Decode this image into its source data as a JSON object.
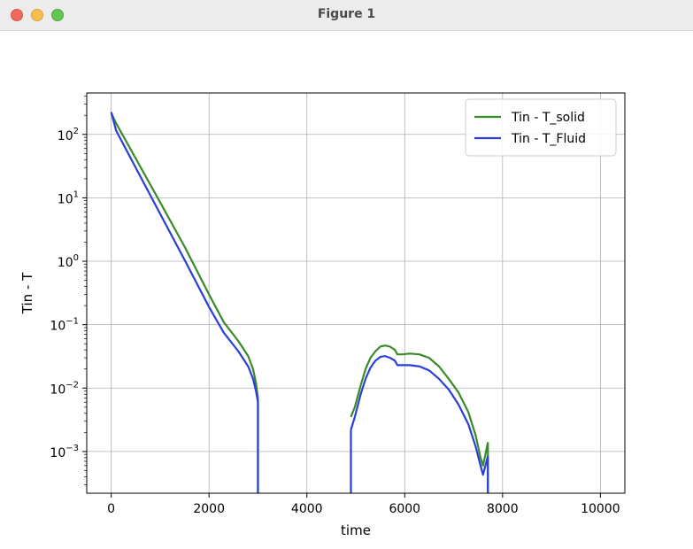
{
  "window": {
    "title": "Figure 1"
  },
  "chart_data": {
    "type": "line",
    "title": "",
    "xlabel": "time",
    "ylabel": "Tin - T",
    "yscale": "log",
    "xlim": [
      -500,
      10500
    ],
    "ylim": [
      0.00022,
      450
    ],
    "xticks": [
      {
        "value": 0,
        "label": "0"
      },
      {
        "value": 2000,
        "label": "2000"
      },
      {
        "value": 4000,
        "label": "4000"
      },
      {
        "value": 6000,
        "label": "6000"
      },
      {
        "value": 8000,
        "label": "8000"
      },
      {
        "value": 10000,
        "label": "10000"
      }
    ],
    "yticks": [
      {
        "value": 100,
        "base": "10",
        "exp": "2"
      },
      {
        "value": 10,
        "base": "10",
        "exp": "1"
      },
      {
        "value": 1,
        "base": "10",
        "exp": "0"
      },
      {
        "value": 0.1,
        "base": "10",
        "exp": "−1"
      },
      {
        "value": 0.01,
        "base": "10",
        "exp": "−2"
      },
      {
        "value": 0.001,
        "base": "10",
        "exp": "−3"
      }
    ],
    "grid": true,
    "legend_position": "top-right",
    "series": [
      {
        "name": "Tin - T_solid",
        "color": "#3a8a2a",
        "segments": [
          [
            [
              0,
              220
            ],
            [
              100,
              150
            ],
            [
              500,
              42
            ],
            [
              1000,
              8.5
            ],
            [
              1500,
              1.7
            ],
            [
              2000,
              0.3
            ],
            [
              2300,
              0.11
            ],
            [
              2600,
              0.055
            ],
            [
              2800,
              0.032
            ],
            [
              2900,
              0.02
            ],
            [
              2960,
              0.012
            ],
            [
              3000,
              0.007
            ]
          ],
          [
            [
              4900,
              0.0035
            ],
            [
              4980,
              0.005
            ],
            [
              5100,
              0.011
            ],
            [
              5200,
              0.02
            ],
            [
              5300,
              0.03
            ],
            [
              5400,
              0.038
            ],
            [
              5500,
              0.045
            ],
            [
              5600,
              0.047
            ],
            [
              5700,
              0.045
            ],
            [
              5800,
              0.04
            ],
            [
              5850,
              0.034
            ],
            [
              5950,
              0.034
            ],
            [
              6100,
              0.035
            ],
            [
              6300,
              0.034
            ],
            [
              6500,
              0.03
            ],
            [
              6700,
              0.022
            ],
            [
              6900,
              0.014
            ],
            [
              7100,
              0.0085
            ],
            [
              7300,
              0.0042
            ],
            [
              7450,
              0.0018
            ],
            [
              7550,
              0.0008
            ],
            [
              7600,
              0.0006
            ],
            [
              7650,
              0.0009
            ],
            [
              7700,
              0.0014
            ]
          ]
        ],
        "drops": [
          3000,
          7700
        ]
      },
      {
        "name": "Tin - T_Fluid",
        "color": "#2a3fd8",
        "segments": [
          [
            [
              0,
              225
            ],
            [
              100,
              115
            ],
            [
              500,
              30
            ],
            [
              1000,
              5.6
            ],
            [
              1500,
              1.05
            ],
            [
              2000,
              0.19
            ],
            [
              2300,
              0.075
            ],
            [
              2600,
              0.038
            ],
            [
              2800,
              0.022
            ],
            [
              2900,
              0.014
            ],
            [
              2960,
              0.009
            ],
            [
              3000,
              0.006
            ]
          ],
          [
            [
              4900,
              0.0022
            ],
            [
              4980,
              0.0035
            ],
            [
              5100,
              0.008
            ],
            [
              5200,
              0.014
            ],
            [
              5300,
              0.021
            ],
            [
              5400,
              0.027
            ],
            [
              5500,
              0.031
            ],
            [
              5600,
              0.032
            ],
            [
              5700,
              0.03
            ],
            [
              5800,
              0.027
            ],
            [
              5850,
              0.023
            ],
            [
              5950,
              0.023
            ],
            [
              6100,
              0.023
            ],
            [
              6300,
              0.022
            ],
            [
              6500,
              0.019
            ],
            [
              6700,
              0.014
            ],
            [
              6900,
              0.0095
            ],
            [
              7100,
              0.0055
            ],
            [
              7300,
              0.0027
            ],
            [
              7450,
              0.0012
            ],
            [
              7550,
              0.0006
            ],
            [
              7600,
              0.00043
            ],
            [
              7650,
              0.0006
            ],
            [
              7700,
              0.00085
            ]
          ]
        ],
        "drops": [
          3000,
          4900,
          7700
        ]
      }
    ]
  }
}
